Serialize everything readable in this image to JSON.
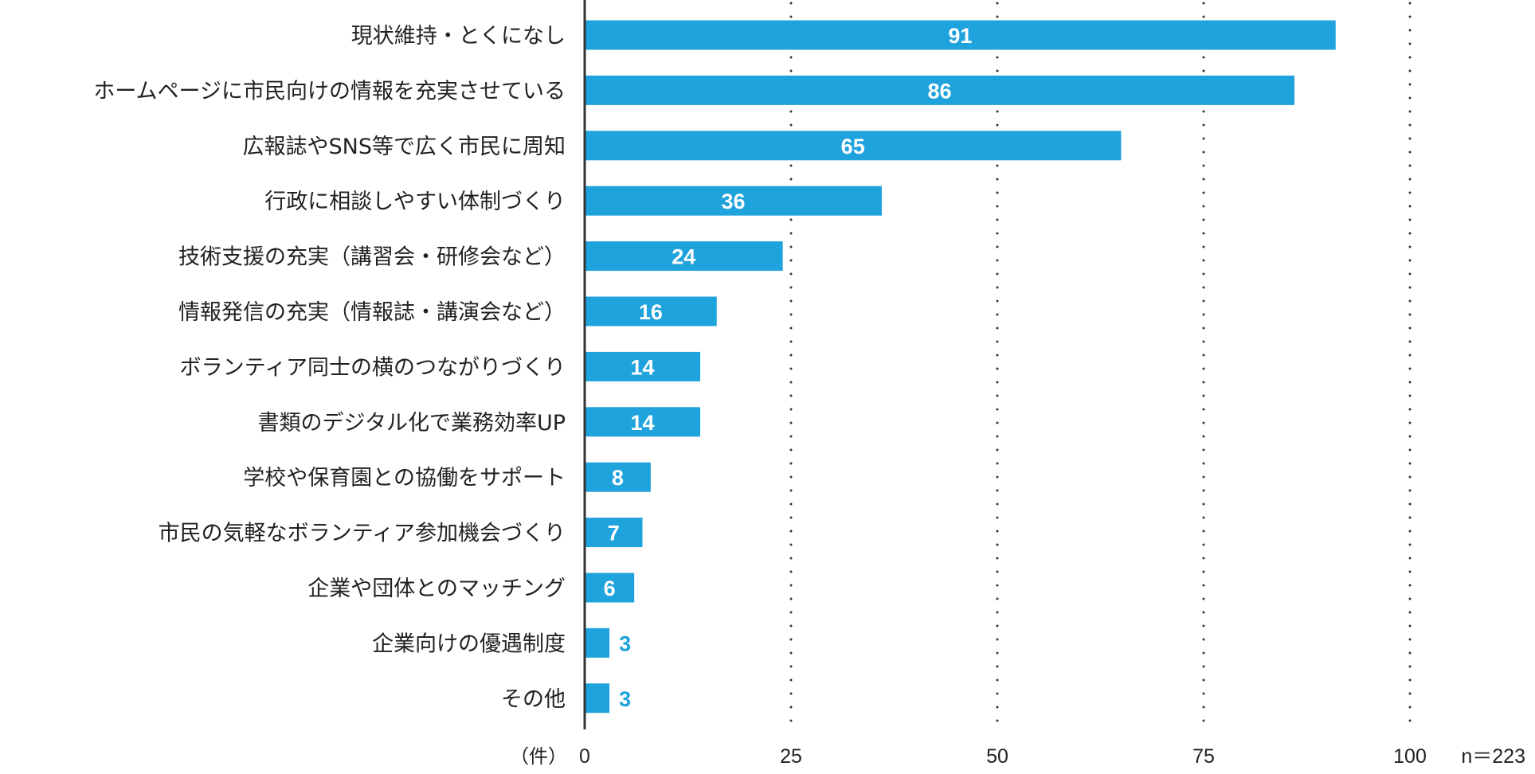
{
  "chart_data": {
    "type": "bar",
    "orientation": "horizontal",
    "categories": [
      "現状維持・とくになし",
      "ホームページに市民向けの情報を充実させている",
      "広報誌やSNS等で広く市民に周知",
      "行政に相談しやすい体制づくり",
      "技術支援の充実（講習会・研修会など）",
      "情報発信の充実（情報誌・講演会など）",
      "ボランティア同士の横のつながりづくり",
      "書類のデジタル化で業務効率UP",
      "学校や保育園との協働をサポート",
      "市民の気軽なボランティア参加機会づくり",
      "企業や団体とのマッチング",
      "企業向けの優遇制度",
      "その他"
    ],
    "values": [
      91,
      86,
      65,
      36,
      24,
      16,
      14,
      14,
      8,
      7,
      6,
      3,
      3
    ],
    "xlim": [
      0,
      100
    ],
    "xticks": [
      "0",
      "25",
      "50",
      "75",
      "100"
    ],
    "xunit": "（件）",
    "note": "n＝223",
    "grid": "vertical dotted",
    "bar_color": "#1fa3dc",
    "label_color_inside": "#ffffff"
  }
}
